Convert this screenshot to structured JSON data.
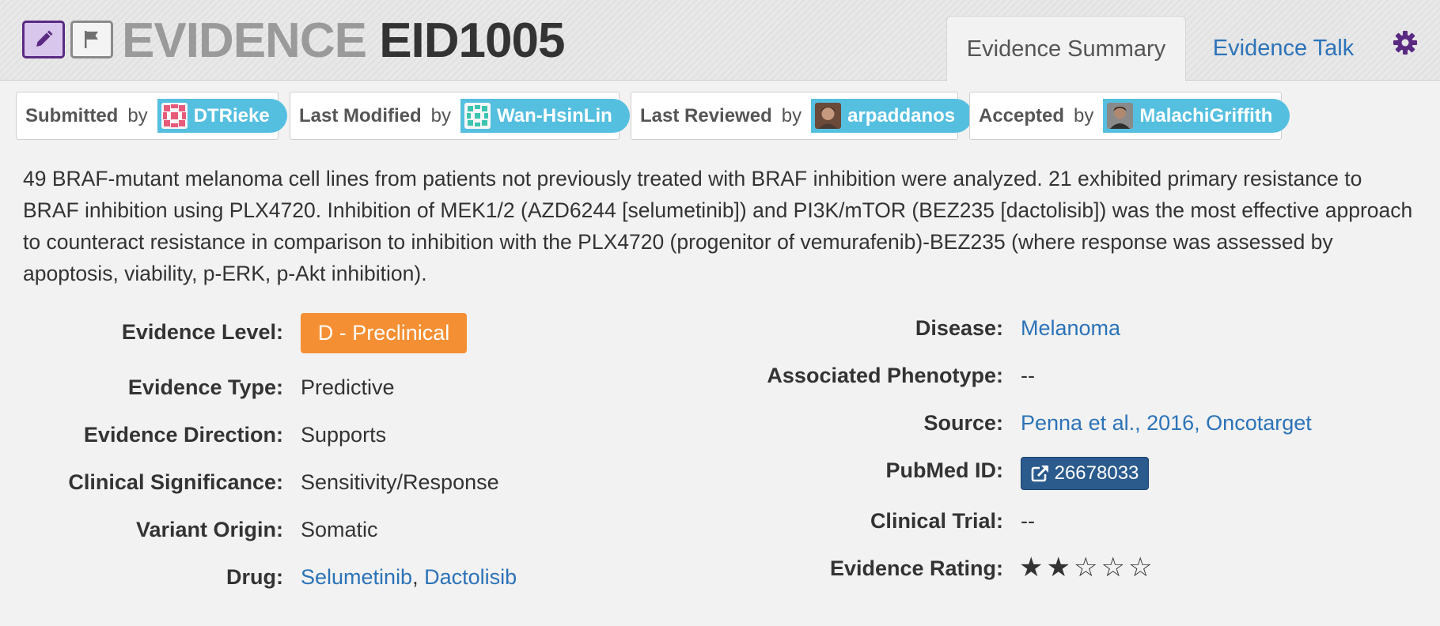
{
  "header": {
    "title_keyword": "EVIDENCE",
    "title_id": "EID1005",
    "edit_icon": "pencil-icon",
    "flag_icon": "flag-icon",
    "tabs": [
      {
        "label": "Evidence Summary",
        "active": true
      },
      {
        "label": "Evidence Talk",
        "active": false
      }
    ],
    "settings_icon": "gear-icon",
    "accent_color": "#5a2a82"
  },
  "attributions": [
    {
      "role": "Submitted",
      "by": "by",
      "user": "DTRieke"
    },
    {
      "role": "Last Modified",
      "by": "by",
      "user": "Wan-HsinLin"
    },
    {
      "role": "Last Reviewed",
      "by": "by",
      "user": "arpaddanos"
    },
    {
      "role": "Accepted",
      "by": "by",
      "user": "MalachiGriffith"
    }
  ],
  "description": "49 BRAF-mutant melanoma cell lines from patients not previously treated with BRAF inhibition were analyzed. 21 exhibited primary resistance to BRAF inhibition using PLX4720. Inhibition of MEK1/2 (AZD6244 [selumetinib]) and PI3K/mTOR (BEZ235 [dactolisib]) was the most effective approach to counteract resistance in comparison to inhibition with the PLX4720 (progenitor of vemurafenib)-BEZ235 (where response was assessed by apoptosis, viability, p-ERK, p-Akt inhibition).",
  "left_fields": {
    "evidence_level": {
      "label": "Evidence Level:",
      "value": "D - Preclinical",
      "color": "#f58f33"
    },
    "evidence_type": {
      "label": "Evidence Type:",
      "value": "Predictive"
    },
    "evidence_direction": {
      "label": "Evidence Direction:",
      "value": "Supports"
    },
    "clinical_significance": {
      "label": "Clinical Significance:",
      "value": "Sensitivity/Response"
    },
    "variant_origin": {
      "label": "Variant Origin:",
      "value": "Somatic"
    },
    "drug": {
      "label": "Drug:",
      "values": [
        "Selumetinib",
        "Dactolisib"
      ],
      "separator": ", "
    }
  },
  "right_fields": {
    "disease": {
      "label": "Disease:",
      "value": "Melanoma"
    },
    "associated_phenotype": {
      "label": "Associated Phenotype:",
      "value": "--"
    },
    "source": {
      "label": "Source:",
      "value": "Penna et al., 2016, Oncotarget"
    },
    "pubmed_id": {
      "label": "PubMed ID:",
      "value": "26678033",
      "icon": "external-link-icon"
    },
    "clinical_trial": {
      "label": "Clinical Trial:",
      "value": "--"
    },
    "evidence_rating": {
      "label": "Evidence Rating:",
      "value": 2,
      "max": 5
    }
  }
}
